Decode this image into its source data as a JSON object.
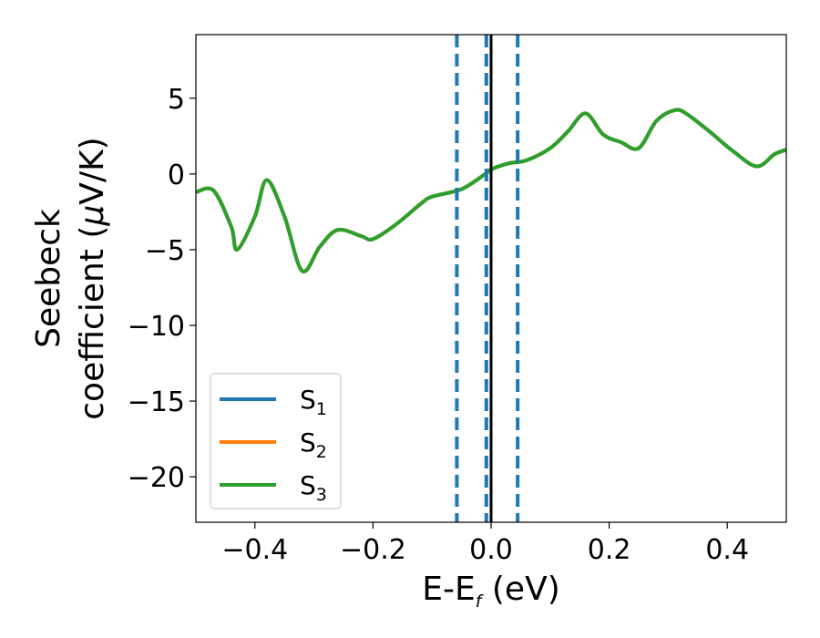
{
  "chart_data": {
    "type": "line",
    "title": "",
    "xlabel": {
      "main": "E-E",
      "sub": "f",
      "unit": " (eV)"
    },
    "ylabel": {
      "line1": "Seebeck",
      "line2": "coefficient  (",
      "mu": "μ",
      "line2_end": "V/K)"
    },
    "xlim": [
      -0.5,
      0.5
    ],
    "ylim": [
      -23,
      9.2
    ],
    "xticks": [
      -0.4,
      -0.2,
      0.0,
      0.2,
      0.4
    ],
    "xtick_labels": [
      "−0.4",
      "−0.2",
      "0.0",
      "0.2",
      "0.4"
    ],
    "yticks": [
      5,
      0,
      -5,
      -10,
      -15,
      -20
    ],
    "ytick_labels": [
      "5",
      "0",
      "−5",
      "−10",
      "−15",
      "−20"
    ],
    "grid": false,
    "legend_position": "lower-left",
    "series": [
      {
        "name": "S",
        "sub": "1",
        "color": "#1f77b4",
        "x": [
          -0.5,
          -0.47,
          -0.44,
          -0.43,
          -0.4,
          -0.38,
          -0.35,
          -0.32,
          -0.29,
          -0.26,
          -0.22,
          -0.2,
          -0.16,
          -0.12,
          -0.1,
          -0.05,
          -0.01,
          0.0,
          0.03,
          0.06,
          0.1,
          0.13,
          0.16,
          0.19,
          0.22,
          0.25,
          0.28,
          0.31,
          0.33,
          0.37,
          0.41,
          0.45,
          0.48,
          0.5
        ],
        "y": [
          -1.2,
          -1.1,
          -3.5,
          -5.0,
          -2.8,
          -0.4,
          -2.8,
          -6.4,
          -4.8,
          -3.7,
          -4.1,
          -4.3,
          -3.3,
          -2.0,
          -1.5,
          -1.0,
          0.0,
          0.3,
          0.7,
          0.9,
          1.7,
          2.8,
          4.0,
          2.6,
          2.1,
          1.7,
          3.5,
          4.2,
          4.0,
          2.8,
          1.5,
          0.5,
          1.3,
          1.6
        ]
      },
      {
        "name": "S",
        "sub": "2",
        "color": "#ff7f0e",
        "x": [
          -0.5,
          -0.47,
          -0.44,
          -0.43,
          -0.4,
          -0.38,
          -0.35,
          -0.32,
          -0.29,
          -0.26,
          -0.22,
          -0.2,
          -0.16,
          -0.12,
          -0.1,
          -0.05,
          -0.01,
          0.0,
          0.03,
          0.06,
          0.1,
          0.13,
          0.16,
          0.19,
          0.22,
          0.25,
          0.28,
          0.31,
          0.33,
          0.37,
          0.41,
          0.45,
          0.48,
          0.5
        ],
        "y": [
          -1.2,
          -1.1,
          -3.5,
          -5.0,
          -2.8,
          -0.4,
          -2.8,
          -6.4,
          -4.8,
          -3.7,
          -4.1,
          -4.3,
          -3.3,
          -2.0,
          -1.5,
          -1.0,
          0.0,
          0.3,
          0.7,
          0.9,
          1.7,
          2.8,
          4.0,
          2.6,
          2.1,
          1.7,
          3.5,
          4.2,
          4.0,
          2.8,
          1.5,
          0.5,
          1.3,
          1.6
        ]
      },
      {
        "name": "S",
        "sub": "3",
        "color": "#2ca02c",
        "x": [
          -0.5,
          -0.47,
          -0.44,
          -0.43,
          -0.4,
          -0.38,
          -0.35,
          -0.32,
          -0.29,
          -0.26,
          -0.22,
          -0.2,
          -0.16,
          -0.12,
          -0.1,
          -0.05,
          -0.01,
          0.0,
          0.03,
          0.06,
          0.1,
          0.13,
          0.16,
          0.19,
          0.22,
          0.25,
          0.28,
          0.31,
          0.33,
          0.37,
          0.41,
          0.45,
          0.48,
          0.5
        ],
        "y": [
          -1.2,
          -1.1,
          -3.5,
          -5.0,
          -2.8,
          -0.4,
          -2.8,
          -6.4,
          -4.8,
          -3.7,
          -4.1,
          -4.3,
          -3.3,
          -2.0,
          -1.5,
          -1.0,
          0.0,
          0.3,
          0.7,
          0.9,
          1.7,
          2.8,
          4.0,
          2.6,
          2.1,
          1.7,
          3.5,
          4.2,
          4.0,
          2.8,
          1.5,
          0.5,
          1.3,
          1.6
        ]
      }
    ],
    "vlines": [
      {
        "x": -0.058,
        "style": "dashed",
        "color": "#1f77b4"
      },
      {
        "x": -0.008,
        "style": "dashed",
        "color": "#1f77b4"
      },
      {
        "x": 0.045,
        "style": "dashed",
        "color": "#1f77b4"
      },
      {
        "x": 0.0,
        "style": "solid",
        "color": "#000000"
      }
    ]
  }
}
